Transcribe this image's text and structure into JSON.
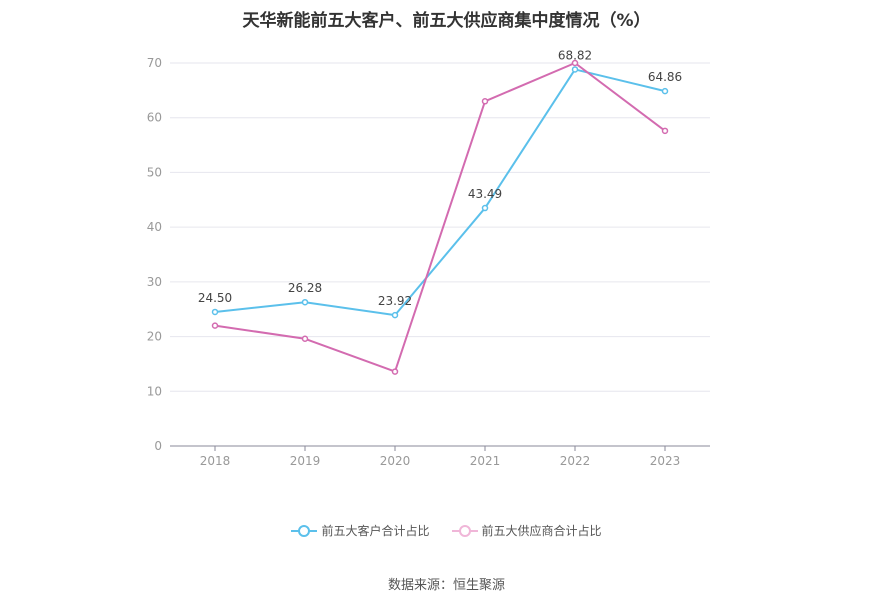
{
  "chart_data": {
    "type": "line",
    "title": "天华新能前五大客户、前五大供应商集中度情况（%）",
    "categories": [
      "2018",
      "2019",
      "2020",
      "2021",
      "2022",
      "2023"
    ],
    "ylim": [
      0,
      70
    ],
    "yticks": [
      0,
      10,
      20,
      30,
      40,
      50,
      60,
      70
    ],
    "grid": true,
    "legend_position": "bottom",
    "series": [
      {
        "name": "前五大客户合计占比",
        "color": "#5bc0eb",
        "values": [
          24.5,
          26.28,
          23.92,
          43.49,
          68.82,
          64.86
        ],
        "labels": [
          "24.50",
          "26.28",
          "23.92",
          "43.49",
          "68.82",
          "64.86"
        ]
      },
      {
        "name": "前五大供应商合计占比",
        "color": "#d36bb0",
        "values": [
          22.0,
          19.6,
          13.6,
          63.0,
          70.0,
          57.6
        ],
        "labels": []
      }
    ]
  },
  "source": "数据来源：恒生聚源"
}
